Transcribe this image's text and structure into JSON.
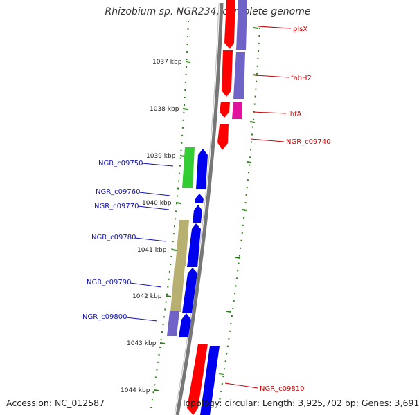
{
  "title": "Rhizobium sp. NGR234, complete genome",
  "footer": {
    "accession": "Accession: NC_012587",
    "summary": "Topology: circular; Length: 3,925,702 bp; Genes: 3,691"
  },
  "colors": {
    "red": "#ff0000",
    "blue": "#0000ee",
    "purple": "#6f63c8",
    "magenta": "#e0149c",
    "green": "#33cc33",
    "olive": "#b8b070",
    "backbone": "#777777",
    "tick": "#2e7d1e",
    "label_red": "#cc0000",
    "label_blue": "#1111bb"
  },
  "ticks": [
    "1037 kbp",
    "1038 kbp",
    "1039 kbp",
    "1040 kbp",
    "1041 kbp",
    "1042 kbp",
    "1043 kbp",
    "1044 kbp"
  ],
  "right_labels": [
    "plsX",
    "fabH2",
    "ihfA",
    "NGR_c09740",
    "NGR_c09810"
  ],
  "left_labels": [
    "NGR_c09750",
    "NGR_c09760",
    "NGR_c09770",
    "NGR_c09780",
    "NGR_c09790",
    "NGR_c09800"
  ]
}
